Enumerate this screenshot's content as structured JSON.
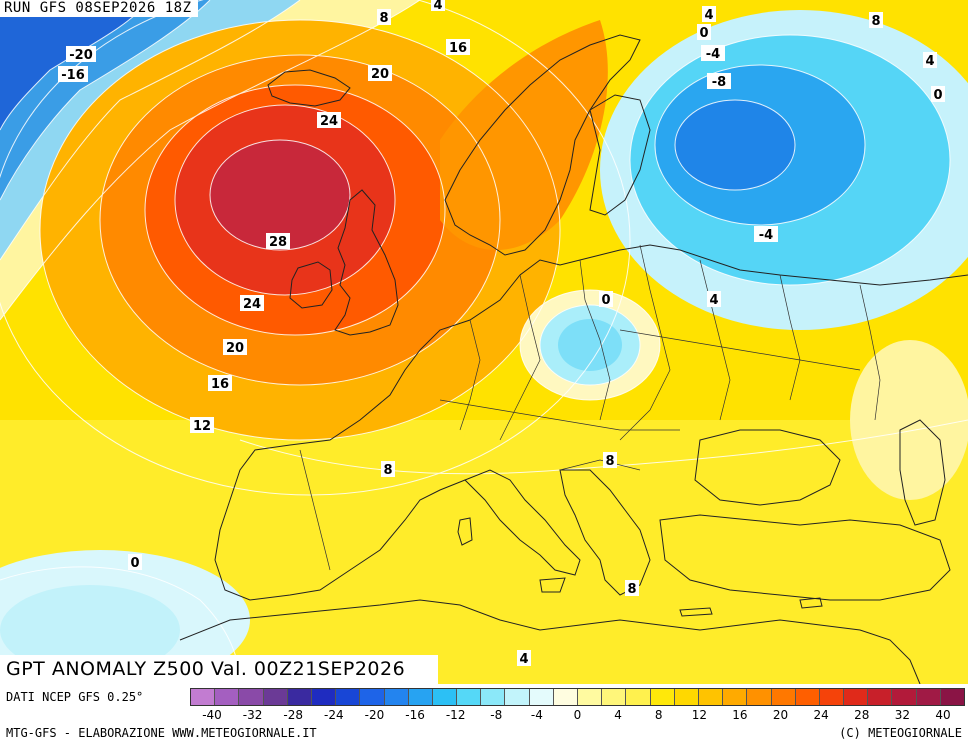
{
  "header": {
    "run_label": "RUN GFS 08SEP2026 18Z"
  },
  "title": "GPT ANOMALY Z500 Val. 00Z21SEP2026",
  "footer": {
    "source": "DATI NCEP GFS 0.25°",
    "credit_left": "MTG-GFS - ELABORAZIONE WWW.METEOGIORNALE.IT",
    "credit_right": "(C) METEOGIORNALE"
  },
  "colors": {
    "land_base": "#f3e000",
    "ocean_base": "#f2d300",
    "coast": "#222222"
  },
  "legend": {
    "ticks": [
      "-40",
      "-32",
      "-28",
      "-24",
      "-20",
      "-16",
      "-12",
      "-8",
      "-4",
      "0",
      "4",
      "8",
      "12",
      "16",
      "20",
      "24",
      "28",
      "32",
      "40"
    ],
    "swatches": [
      "#c27cd1",
      "#a45fc0",
      "#8a4aa8",
      "#6b3a96",
      "#3a2aa0",
      "#1f2cc0",
      "#1846d6",
      "#1e64e8",
      "#2384ef",
      "#27a3f2",
      "#2cc0f5",
      "#55d8f7",
      "#8be8f9",
      "#c2f4fb",
      "#e4fbfc",
      "#fffde0",
      "#fffaa0",
      "#fff67a",
      "#fff14e",
      "#ffe80a",
      "#ffd800",
      "#ffc300",
      "#ffaa00",
      "#ff9100",
      "#ff7800",
      "#ff5f00",
      "#f5430a",
      "#e02a1a",
      "#c8202a",
      "#b21a3a",
      "#a01a45",
      "#8a1445"
    ]
  },
  "contour_labels": [
    {
      "text": "-20"
    },
    {
      "text": "-16"
    },
    {
      "text": "8"
    },
    {
      "text": "4"
    },
    {
      "text": "16"
    },
    {
      "text": "20"
    },
    {
      "text": "24"
    },
    {
      "text": "28"
    },
    {
      "text": "24"
    },
    {
      "text": "20"
    },
    {
      "text": "16"
    },
    {
      "text": "12"
    },
    {
      "text": "8"
    },
    {
      "text": "0"
    },
    {
      "text": "4"
    },
    {
      "text": "0"
    },
    {
      "text": "-4"
    },
    {
      "text": "-8"
    },
    {
      "text": "8"
    },
    {
      "text": "4"
    },
    {
      "text": "0"
    },
    {
      "text": "-4"
    },
    {
      "text": "0"
    },
    {
      "text": "4"
    },
    {
      "text": "8"
    },
    {
      "text": "8"
    },
    {
      "text": "4"
    }
  ]
}
